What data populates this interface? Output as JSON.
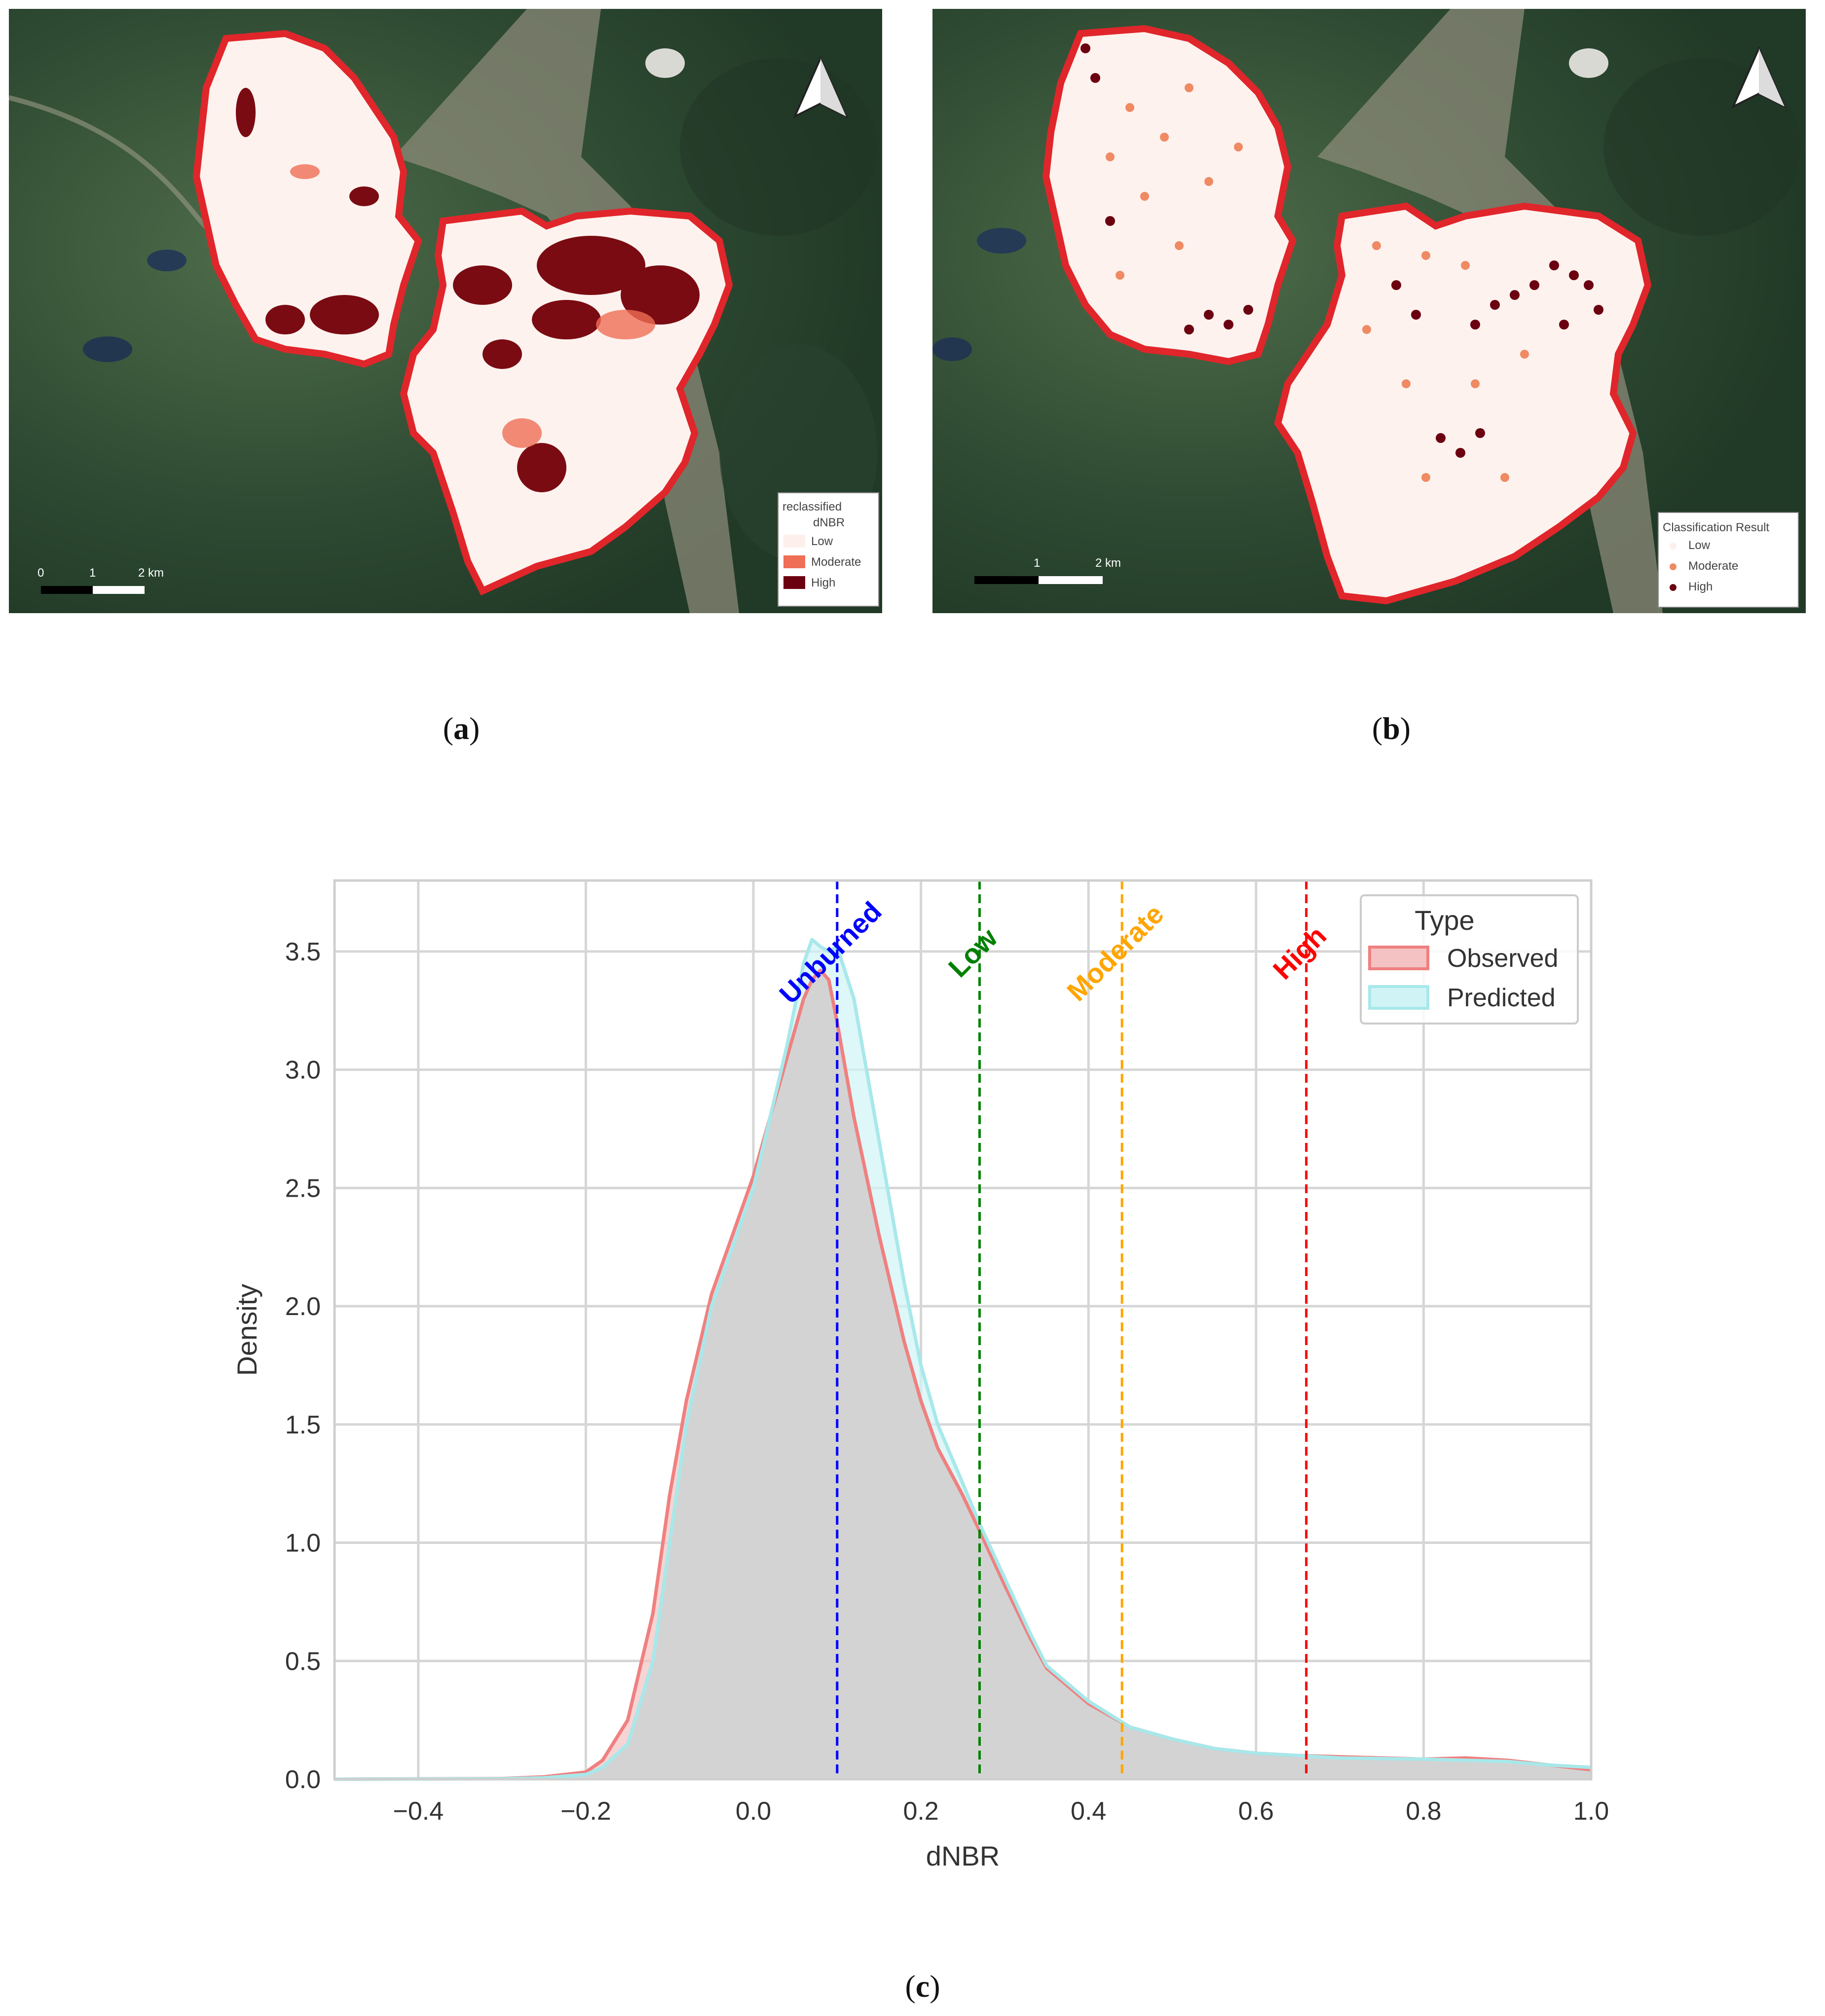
{
  "panels": {
    "a": {
      "caption_letter": "a",
      "legend": {
        "title_line1": "reclassified",
        "title_line2": "dNBR",
        "items": [
          {
            "label": "Low",
            "color": "#fdf0ec"
          },
          {
            "label": "Moderate",
            "color": "#ef6e55"
          },
          {
            "label": "High",
            "color": "#6b0010"
          }
        ]
      },
      "scale": {
        "labels": [
          "0",
          "1",
          "2 km"
        ]
      }
    },
    "b": {
      "caption_letter": "b",
      "legend": {
        "title": "Classification Result",
        "items": [
          {
            "label": "Low",
            "color": "#fdf0ec"
          },
          {
            "label": "Moderate",
            "color": "#ef8a62"
          },
          {
            "label": "High",
            "color": "#6b0010"
          }
        ]
      },
      "scale": {
        "labels": [
          "1",
          "2 km"
        ]
      }
    },
    "c": {
      "caption_letter": "c"
    }
  },
  "colors": {
    "boundary": "#e0262b",
    "burn_fill": "#fdf2ee",
    "imagery_dark": "#2b4430",
    "imagery_mid": "#4c6a47",
    "imagery_light": "#8c8f7c"
  },
  "chart_data": {
    "type": "area",
    "xlabel": "dNBR",
    "ylabel": "Density",
    "xlim": [
      -0.5,
      1.0
    ],
    "ylim": [
      0,
      3.8
    ],
    "xticks": [
      -0.4,
      -0.2,
      0.0,
      0.2,
      0.4,
      0.6,
      0.8,
      1.0
    ],
    "xtick_labels": [
      "−0.4",
      "−0.2",
      "0.0",
      "0.2",
      "0.4",
      "0.6",
      "0.8",
      "1.0"
    ],
    "yticks": [
      0.0,
      0.5,
      1.0,
      1.5,
      2.0,
      2.5,
      3.0,
      3.5
    ],
    "ytick_labels": [
      "0.0",
      "0.5",
      "1.0",
      "1.5",
      "2.0",
      "2.5",
      "3.0",
      "3.5"
    ],
    "grid": true,
    "legend": {
      "title": "Type",
      "position": "top-right"
    },
    "series": [
      {
        "name": "Observed",
        "line_color": "#f08080",
        "fill_color": "#f4c2c2",
        "x": [
          -0.5,
          -0.3,
          -0.25,
          -0.2,
          -0.18,
          -0.15,
          -0.12,
          -0.1,
          -0.08,
          -0.05,
          -0.02,
          0.0,
          0.02,
          0.04,
          0.06,
          0.07,
          0.08,
          0.09,
          0.1,
          0.12,
          0.15,
          0.18,
          0.2,
          0.22,
          0.25,
          0.27,
          0.3,
          0.33,
          0.35,
          0.4,
          0.45,
          0.5,
          0.55,
          0.6,
          0.65,
          0.7,
          0.8,
          0.85,
          0.9,
          0.95,
          1.0
        ],
        "y": [
          0.0,
          0.003,
          0.01,
          0.03,
          0.08,
          0.25,
          0.7,
          1.2,
          1.6,
          2.05,
          2.35,
          2.55,
          2.8,
          3.05,
          3.3,
          3.38,
          3.42,
          3.38,
          3.2,
          2.8,
          2.3,
          1.85,
          1.6,
          1.4,
          1.2,
          1.05,
          0.82,
          0.6,
          0.47,
          0.32,
          0.22,
          0.17,
          0.13,
          0.11,
          0.1,
          0.095,
          0.085,
          0.09,
          0.08,
          0.06,
          0.04
        ]
      },
      {
        "name": "Predicted",
        "line_color": "#a8e8ea",
        "fill_color": "#d0f4f5",
        "x": [
          -0.5,
          -0.3,
          -0.25,
          -0.2,
          -0.18,
          -0.15,
          -0.12,
          -0.1,
          -0.08,
          -0.05,
          -0.02,
          0.0,
          0.02,
          0.04,
          0.06,
          0.07,
          0.08,
          0.09,
          0.1,
          0.12,
          0.15,
          0.18,
          0.2,
          0.22,
          0.25,
          0.27,
          0.3,
          0.33,
          0.35,
          0.4,
          0.45,
          0.5,
          0.55,
          0.6,
          0.65,
          0.7,
          0.8,
          0.85,
          0.9,
          0.95,
          1.0
        ],
        "y": [
          0.0,
          0.002,
          0.006,
          0.02,
          0.05,
          0.15,
          0.5,
          1.0,
          1.5,
          2.0,
          2.3,
          2.5,
          2.8,
          3.1,
          3.45,
          3.55,
          3.52,
          3.5,
          3.52,
          3.3,
          2.7,
          2.1,
          1.75,
          1.5,
          1.25,
          1.08,
          0.85,
          0.62,
          0.48,
          0.33,
          0.22,
          0.17,
          0.13,
          0.11,
          0.1,
          0.09,
          0.085,
          0.08,
          0.075,
          0.06,
          0.05
        ]
      }
    ],
    "thresholds": [
      {
        "label": "Unburned",
        "x": 0.1,
        "color": "#0000ff"
      },
      {
        "label": "Low",
        "x": 0.27,
        "color": "#008000"
      },
      {
        "label": "Moderate",
        "x": 0.44,
        "color": "#ffa500"
      },
      {
        "label": "High",
        "x": 0.66,
        "color": "#ff0000"
      }
    ]
  }
}
